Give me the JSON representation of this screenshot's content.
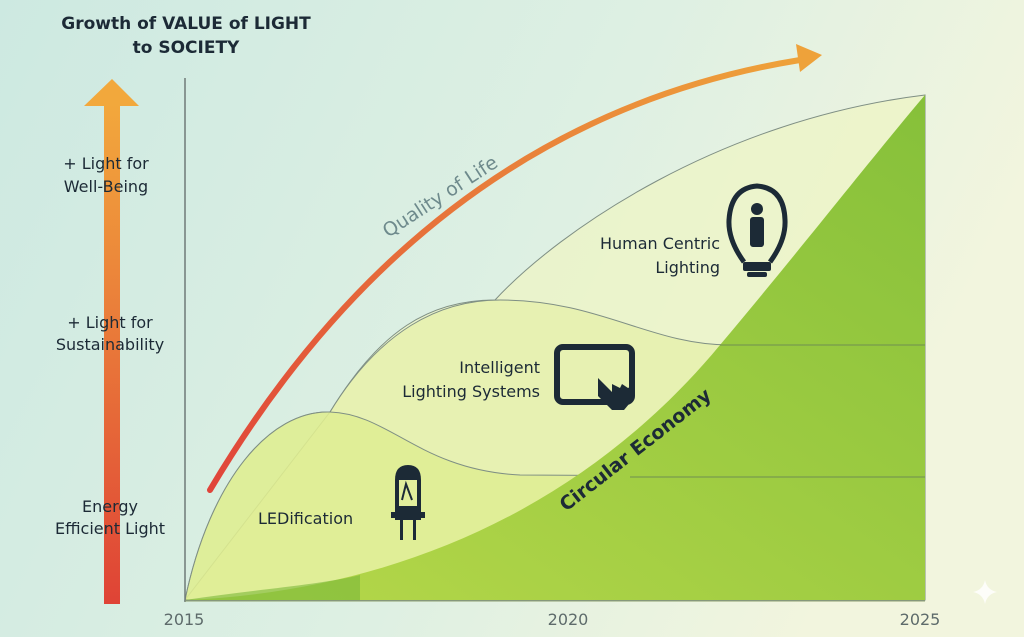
{
  "title": {
    "line1": "Growth of VALUE of LIGHT",
    "line2": "to SOCIETY"
  },
  "value_levels": [
    {
      "line1": "+ Light for",
      "line2": "Well-Being"
    },
    {
      "line1": "+ Light for",
      "line2": "Sustainability"
    },
    {
      "line1": "Energy",
      "line2": "Efficient Light"
    }
  ],
  "x_ticks": [
    "2015",
    "2020",
    "2025"
  ],
  "trend_label": "Quality of Life",
  "stages": [
    {
      "line1": "LEDification",
      "icon": "led-diode-icon"
    },
    {
      "line1": "Intelligent",
      "line2": "Lighting Systems",
      "icon": "tablet-touch-icon"
    },
    {
      "line1": "Human Centric",
      "line2": "Lighting",
      "icon": "lightbulb-person-icon"
    }
  ],
  "foundation_label": "Circular Economy",
  "colors": {
    "arrow_top": "#f0a63a",
    "arrow_bottom": "#e0443a",
    "green": "#8fc63c",
    "dark_text": "#1c2a36"
  }
}
